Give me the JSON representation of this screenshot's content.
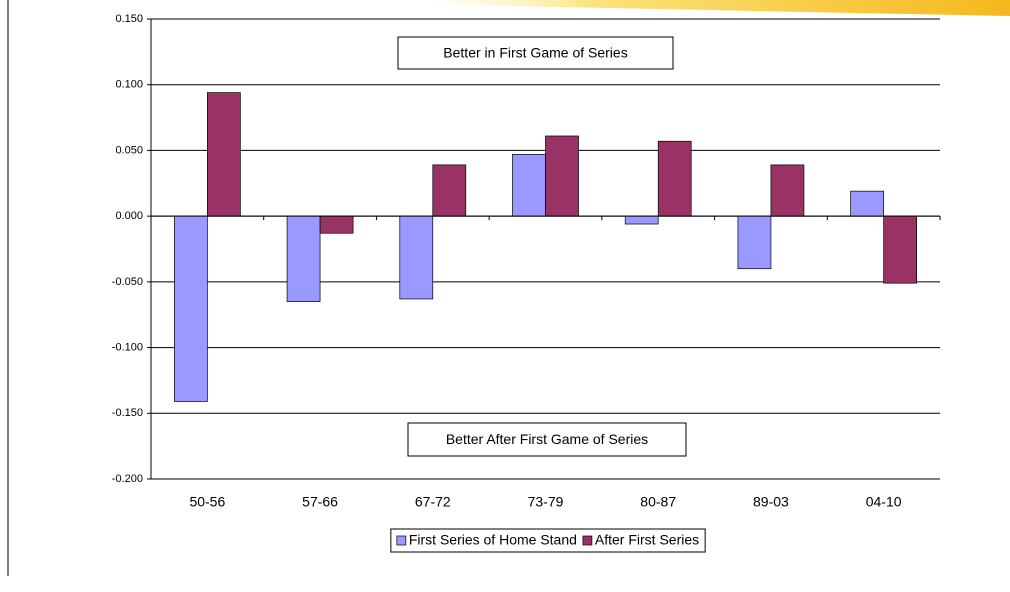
{
  "chart_data": {
    "type": "bar",
    "categories": [
      "50-56",
      "57-66",
      "67-72",
      "73-79",
      "80-87",
      "89-03",
      "04-10"
    ],
    "series": [
      {
        "name": "First Series of Home Stand",
        "color": "#9999ff",
        "values": [
          -0.141,
          -0.065,
          -0.063,
          0.047,
          -0.006,
          -0.04,
          0.019
        ]
      },
      {
        "name": "After First Series",
        "color": "#993366",
        "values": [
          0.094,
          -0.013,
          0.039,
          0.061,
          0.057,
          0.039,
          -0.051
        ]
      }
    ],
    "ylim": [
      -0.2,
      0.15
    ],
    "yticks": [
      {
        "value": 0.15,
        "label": "0.150"
      },
      {
        "value": 0.1,
        "label": "0.100"
      },
      {
        "value": 0.05,
        "label": "0.050"
      },
      {
        "value": 0,
        "label": "0.000"
      },
      {
        "value": -0.05,
        "label": "-0.050"
      },
      {
        "value": -0.1,
        "label": "-0.100"
      },
      {
        "value": -0.15,
        "label": "-0.150"
      },
      {
        "value": -0.2,
        "label": "-0.200"
      }
    ],
    "grid": true,
    "annotations": [
      "Better in First Game of Series",
      "Better After First Game of Series"
    ],
    "legend": "bottom"
  }
}
